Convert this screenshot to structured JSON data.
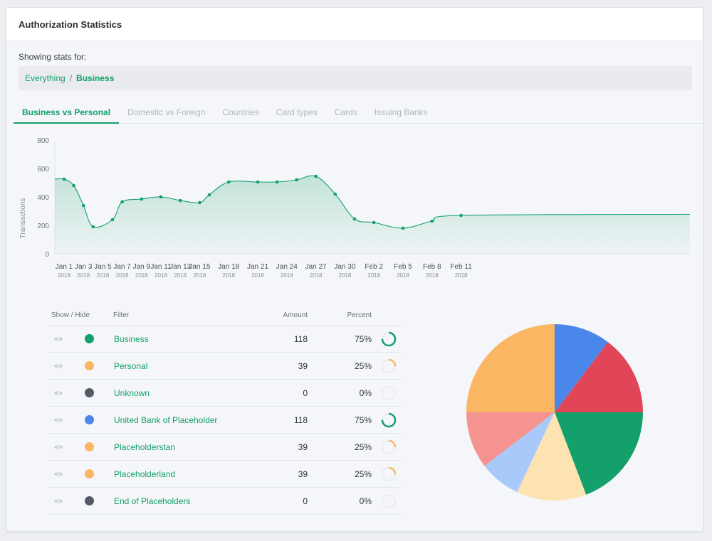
{
  "header": {
    "title": "Authorization Statistics"
  },
  "filter": {
    "label": "Showing stats for:",
    "crumb1": "Everything",
    "separator": "/",
    "crumb2": "Business"
  },
  "tabs": [
    "Business vs Personal",
    "Domestic vs Foreign",
    "Countries",
    "Card types",
    "Cards",
    "Issuing Banks"
  ],
  "colors": {
    "accent": "#14a06a",
    "area": "#d6ebe2"
  },
  "chart_data": {
    "type": "area",
    "ylabel": "Transactions",
    "ylim": [
      0,
      800
    ],
    "yticks": [
      0,
      200,
      400,
      600,
      800
    ],
    "xticks": [
      {
        "label": "Jan 1",
        "year": "2018",
        "day": 0
      },
      {
        "label": "Jan 3",
        "year": "2018",
        "day": 2
      },
      {
        "label": "Jan 5",
        "year": "2018",
        "day": 4
      },
      {
        "label": "Jan 7",
        "year": "2018",
        "day": 6
      },
      {
        "label": "Jan 9",
        "year": "2018",
        "day": 8
      },
      {
        "label": "Jan 11",
        "year": "2018",
        "day": 10
      },
      {
        "label": "Jan 13",
        "year": "2018",
        "day": 12
      },
      {
        "label": "Jan 15",
        "year": "2018",
        "day": 14
      },
      {
        "label": "Jan 18",
        "year": "2018",
        "day": 17
      },
      {
        "label": "Jan 21",
        "year": "2018",
        "day": 20
      },
      {
        "label": "Jan 24",
        "year": "2018",
        "day": 23
      },
      {
        "label": "Jan 27",
        "year": "2018",
        "day": 26
      },
      {
        "label": "Jan 30",
        "year": "2018",
        "day": 29
      },
      {
        "label": "Feb 2",
        "year": "2018",
        "day": 32
      },
      {
        "label": "Feb 5",
        "year": "2018",
        "day": 35
      },
      {
        "label": "Feb 8",
        "year": "2018",
        "day": 38
      },
      {
        "label": "Feb 11",
        "year": "2018",
        "day": 41
      }
    ],
    "points": [
      {
        "day": 0,
        "value": 525
      },
      {
        "day": 1,
        "value": 480
      },
      {
        "day": 2,
        "value": 340
      },
      {
        "day": 3,
        "value": 190
      },
      {
        "day": 5,
        "value": 240
      },
      {
        "day": 6,
        "value": 365
      },
      {
        "day": 8,
        "value": 385
      },
      {
        "day": 10,
        "value": 400
      },
      {
        "day": 12,
        "value": 375
      },
      {
        "day": 14,
        "value": 360
      },
      {
        "day": 15,
        "value": 415
      },
      {
        "day": 17,
        "value": 505
      },
      {
        "day": 20,
        "value": 505
      },
      {
        "day": 22,
        "value": 505
      },
      {
        "day": 24,
        "value": 520
      },
      {
        "day": 26,
        "value": 545
      },
      {
        "day": 28,
        "value": 420
      },
      {
        "day": 30,
        "value": 245
      },
      {
        "day": 32,
        "value": 220
      },
      {
        "day": 35,
        "value": 180
      },
      {
        "day": 38,
        "value": 230
      },
      {
        "day": 41,
        "value": 270
      }
    ]
  },
  "table": {
    "headers": {
      "show_hide": "Show / Hide",
      "filter": "Filter",
      "amount": "Amount",
      "percent": "Percent"
    },
    "rows": [
      {
        "name": "Business",
        "amount": "118",
        "percent": "75%",
        "pct": 75,
        "dot": "#14a06a",
        "ring": "#14a06a"
      },
      {
        "name": "Personal",
        "amount": "39",
        "percent": "25%",
        "pct": 25,
        "dot": "#fbb664",
        "ring": "#fbb664"
      },
      {
        "name": "Unknown",
        "amount": "0",
        "percent": "0%",
        "pct": 0,
        "dot": "#545966",
        "ring": "#545966"
      },
      {
        "name": "United Bank of Placeholder",
        "amount": "118",
        "percent": "75%",
        "pct": 75,
        "dot": "#4a87ea",
        "ring": "#14a06a"
      },
      {
        "name": "Placeholderstan",
        "amount": "39",
        "percent": "25%",
        "pct": 25,
        "dot": "#fbb664",
        "ring": "#fbb664"
      },
      {
        "name": "Placeholderland",
        "amount": "39",
        "percent": "25%",
        "pct": 25,
        "dot": "#fbb664",
        "ring": "#fbb664"
      },
      {
        "name": "End of Placeholders",
        "amount": "0",
        "percent": "0%",
        "pct": 0,
        "dot": "#545966",
        "ring": "#545966"
      }
    ]
  },
  "pie_data": {
    "type": "pie",
    "slices": [
      {
        "value": 10.3,
        "color": "#4a87ea"
      },
      {
        "value": 14.7,
        "color": "#e04558"
      },
      {
        "value": 19.2,
        "color": "#14a06a"
      },
      {
        "value": 12.8,
        "color": "#fde3b2"
      },
      {
        "value": 7.6,
        "color": "#a9c9fb"
      },
      {
        "value": 10.4,
        "color": "#f59391"
      },
      {
        "value": 25.0,
        "color": "#fbb664"
      }
    ]
  }
}
